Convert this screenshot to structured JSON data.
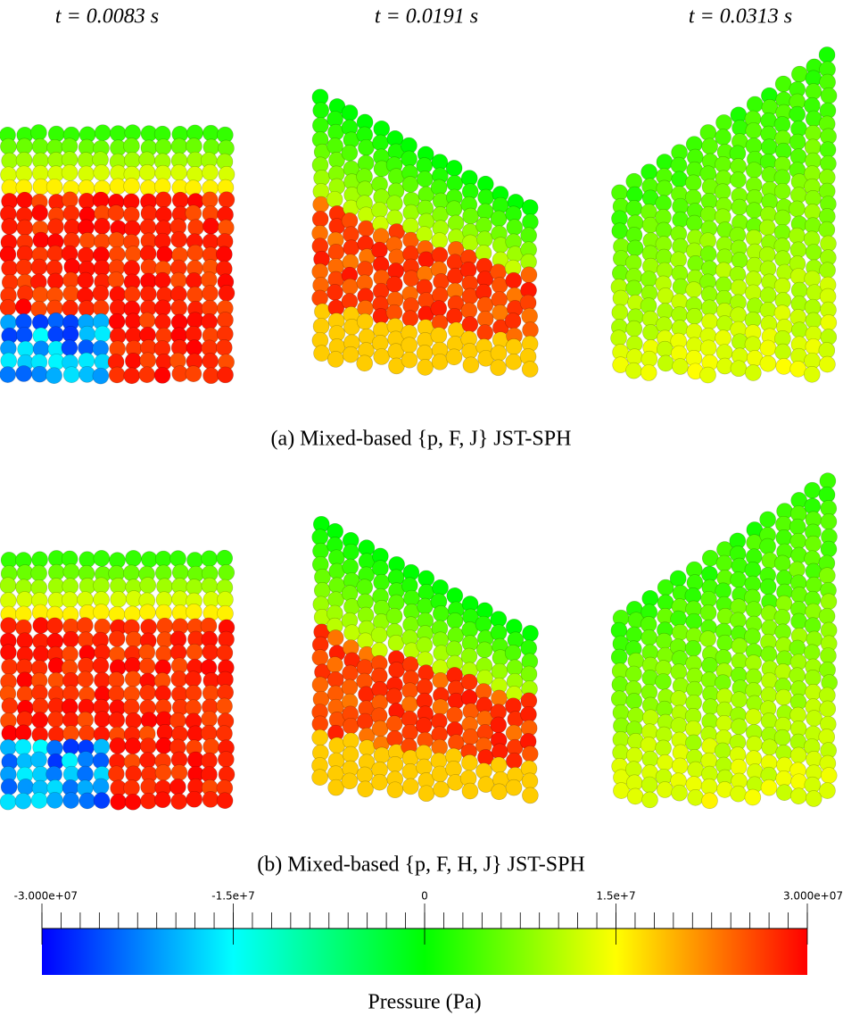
{
  "panels": {
    "times": [
      "t = 0.0083 s",
      "t = 0.0191 s",
      "t = 0.0313 s"
    ]
  },
  "captions": [
    "(a) Mixed-based {p, F, J} JST-SPH",
    "(b) Mixed-based {p, F, H, J} JST-SPH"
  ],
  "colorbar": {
    "title": "Pressure (Pa)",
    "lim": [
      -30000000,
      30000000
    ],
    "ticks": [
      {
        "value": -30000000,
        "label": "-3.000e+07"
      },
      {
        "value": -15000000,
        "label": "-1.5e+7"
      },
      0,
      {
        "value": 15000000,
        "label": "1.5e+7"
      },
      {
        "value": 30000000,
        "label": "3.000e+07"
      }
    ],
    "colors": [
      "#0000ff",
      "#00ffff",
      "#00ff00",
      "#ffff00",
      "#ff0000"
    ]
  }
}
